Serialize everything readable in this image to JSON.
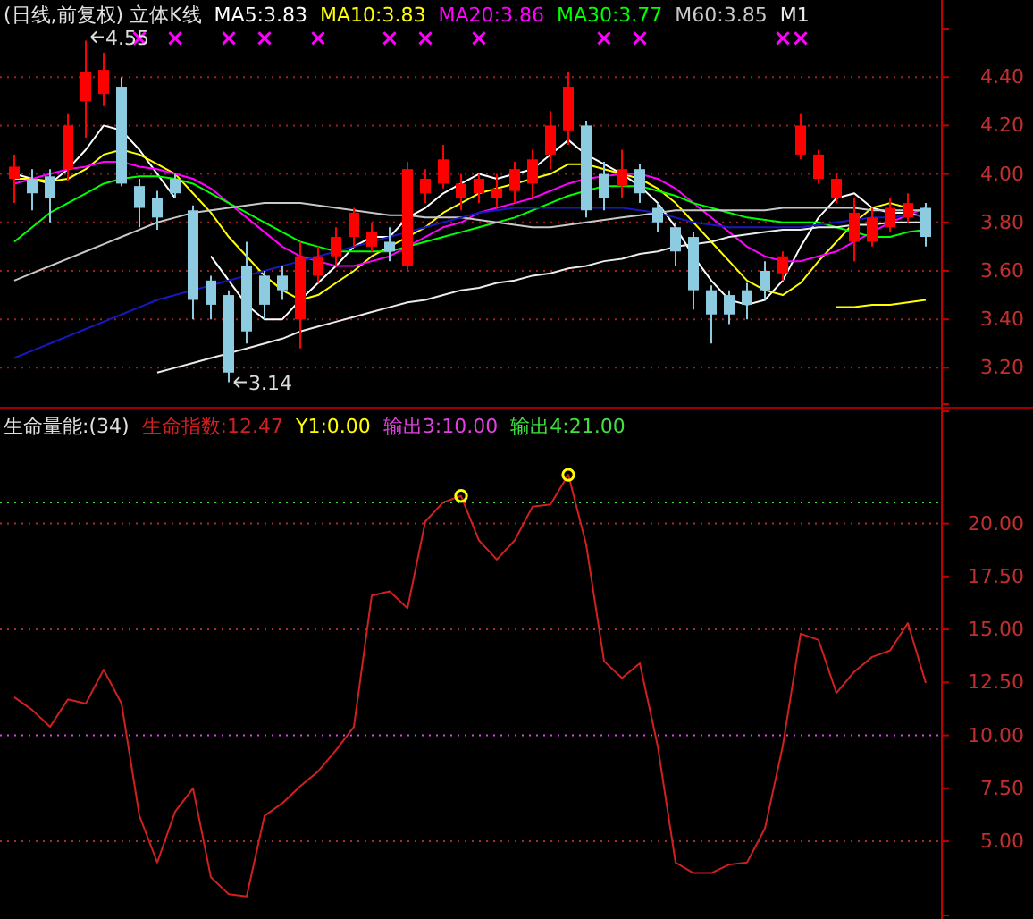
{
  "chart_data": [
    {
      "type": "candlestick",
      "title": "(日线,前复权) 立体K线",
      "legend": "top",
      "tick_labels": "y",
      "grid": "y",
      "categories": [
        null,
        null,
        null,
        null,
        null,
        null,
        null,
        null,
        null,
        null,
        null,
        null,
        null,
        null,
        null,
        null,
        null,
        null,
        null,
        null,
        null,
        null,
        null,
        null,
        null,
        null,
        null,
        null,
        null,
        null,
        null,
        null,
        null,
        null,
        null,
        null,
        null,
        null,
        null,
        null,
        null,
        null,
        null,
        null,
        null,
        null,
        null,
        null,
        null,
        null,
        null,
        null
      ],
      "ohlc": [
        [
          3.98,
          4.08,
          3.88,
          4.03
        ],
        [
          3.98,
          4.02,
          3.85,
          3.92
        ],
        [
          3.99,
          4.02,
          3.8,
          3.9
        ],
        [
          4.02,
          4.25,
          3.97,
          4.2
        ],
        [
          4.3,
          4.55,
          4.15,
          4.42
        ],
        [
          4.33,
          4.5,
          4.28,
          4.43
        ],
        [
          4.36,
          4.4,
          3.95,
          3.96
        ],
        [
          3.95,
          3.98,
          3.78,
          3.86
        ],
        [
          3.9,
          3.93,
          3.77,
          3.82
        ],
        [
          3.98,
          4.0,
          3.9,
          3.92
        ],
        [
          3.85,
          3.87,
          3.4,
          3.48
        ],
        [
          3.56,
          3.58,
          3.4,
          3.46
        ],
        [
          3.5,
          3.52,
          3.14,
          3.18
        ],
        [
          3.62,
          3.72,
          3.3,
          3.35
        ],
        [
          3.58,
          3.6,
          3.4,
          3.46
        ],
        [
          3.58,
          3.62,
          3.48,
          3.52
        ],
        [
          3.4,
          3.72,
          3.28,
          3.66
        ],
        [
          3.58,
          3.7,
          3.55,
          3.66
        ],
        [
          3.66,
          3.78,
          3.62,
          3.74
        ],
        [
          3.74,
          3.86,
          3.7,
          3.84
        ],
        [
          3.7,
          3.8,
          3.68,
          3.76
        ],
        [
          3.72,
          3.78,
          3.64,
          3.68
        ],
        [
          3.62,
          4.05,
          3.6,
          4.02
        ],
        [
          3.92,
          4.02,
          3.88,
          3.98
        ],
        [
          3.96,
          4.12,
          3.94,
          4.06
        ],
        [
          3.9,
          4.0,
          3.85,
          3.96
        ],
        [
          3.92,
          4.0,
          3.88,
          3.98
        ],
        [
          3.9,
          4.0,
          3.86,
          3.94
        ],
        [
          3.93,
          4.05,
          3.88,
          4.02
        ],
        [
          3.96,
          4.1,
          3.9,
          4.06
        ],
        [
          4.08,
          4.26,
          4.02,
          4.2
        ],
        [
          4.18,
          4.42,
          4.12,
          4.36
        ],
        [
          4.2,
          4.22,
          3.82,
          3.85
        ],
        [
          4.0,
          4.05,
          3.85,
          3.9
        ],
        [
          3.95,
          4.1,
          3.9,
          4.02
        ],
        [
          4.02,
          4.04,
          3.88,
          3.92
        ],
        [
          3.86,
          3.88,
          3.76,
          3.8
        ],
        [
          3.78,
          3.8,
          3.62,
          3.68
        ],
        [
          3.74,
          3.76,
          3.44,
          3.52
        ],
        [
          3.52,
          3.54,
          3.3,
          3.42
        ],
        [
          3.5,
          3.52,
          3.38,
          3.42
        ],
        [
          3.52,
          3.55,
          3.4,
          3.46
        ],
        [
          3.6,
          3.64,
          3.48,
          3.52
        ],
        [
          3.59,
          3.68,
          3.56,
          3.66
        ],
        [
          4.08,
          4.25,
          4.06,
          4.2
        ],
        [
          3.98,
          4.1,
          3.96,
          4.08
        ],
        [
          3.9,
          4.0,
          3.88,
          3.98
        ],
        [
          3.72,
          3.9,
          3.64,
          3.84
        ],
        [
          3.72,
          3.86,
          3.7,
          3.82
        ],
        [
          3.78,
          3.9,
          3.76,
          3.86
        ],
        [
          3.82,
          3.92,
          3.8,
          3.88
        ],
        [
          3.86,
          3.88,
          3.7,
          3.74
        ]
      ],
      "series": [
        {
          "name": "MA5:3.83",
          "type": "line",
          "color": "#ffffff",
          "values": [
            4.0,
            3.98,
            3.96,
            4.02,
            4.1,
            4.2,
            4.18,
            4.1,
            4.0,
            3.9,
            null,
            3.66,
            3.56,
            3.46,
            3.4,
            3.4,
            3.48,
            3.55,
            3.62,
            3.7,
            3.74,
            3.74,
            3.82,
            3.86,
            3.92,
            3.96,
            4.0,
            3.98,
            4.0,
            4.02,
            4.08,
            4.14,
            4.08,
            4.04,
            4.0,
            3.95,
            3.88,
            3.78,
            3.66,
            3.56,
            3.48,
            3.46,
            3.48,
            3.56,
            3.7,
            3.82,
            3.9,
            3.92,
            3.86,
            3.84,
            3.84,
            3.82
          ]
        },
        {
          "name": "MA10:3.83",
          "type": "line",
          "color": "#ffff00",
          "values": [
            3.98,
            3.98,
            3.97,
            3.98,
            4.02,
            4.08,
            4.1,
            4.08,
            4.04,
            4.0,
            3.92,
            3.84,
            3.74,
            3.66,
            3.58,
            3.52,
            3.48,
            3.5,
            3.55,
            3.6,
            3.66,
            3.7,
            3.74,
            3.78,
            3.84,
            3.88,
            3.92,
            3.94,
            3.96,
            3.98,
            4.0,
            4.04,
            4.04,
            4.02,
            4.0,
            3.98,
            3.94,
            3.88,
            3.8,
            3.72,
            3.64,
            3.56,
            3.52,
            3.5,
            3.55,
            3.64,
            3.72,
            3.8,
            3.86,
            3.88,
            3.86,
            null
          ]
        },
        {
          "name": "MA20:3.86",
          "type": "line",
          "color": "#ff00ff",
          "values": [
            3.96,
            3.98,
            4.0,
            4.02,
            4.03,
            4.05,
            4.05,
            4.03,
            4.02,
            4.0,
            3.98,
            3.94,
            3.88,
            3.82,
            3.76,
            3.7,
            3.66,
            3.64,
            3.62,
            3.62,
            3.64,
            3.66,
            3.7,
            3.74,
            3.78,
            3.8,
            3.84,
            3.86,
            3.88,
            3.9,
            3.93,
            3.96,
            3.98,
            3.99,
            4.0,
            4.0,
            3.98,
            3.94,
            3.88,
            3.82,
            3.76,
            3.7,
            3.66,
            3.64,
            3.64,
            3.66,
            3.68,
            3.72,
            3.76,
            3.8,
            3.83,
            3.86
          ]
        },
        {
          "name": "MA30:3.77",
          "type": "line",
          "color": "#00ff00",
          "values": [
            3.72,
            3.78,
            3.84,
            3.88,
            3.92,
            3.96,
            3.98,
            3.99,
            3.99,
            3.98,
            3.96,
            3.92,
            3.88,
            3.84,
            3.8,
            3.76,
            3.72,
            3.7,
            3.68,
            3.68,
            3.68,
            3.68,
            3.7,
            3.72,
            3.74,
            3.76,
            3.78,
            3.8,
            3.82,
            3.85,
            3.88,
            3.91,
            3.93,
            3.95,
            3.95,
            3.95,
            3.93,
            3.91,
            3.88,
            3.86,
            3.84,
            3.82,
            3.81,
            3.8,
            3.8,
            3.8,
            3.78,
            3.76,
            3.74,
            3.74,
            3.76,
            3.77
          ]
        },
        {
          "name": "M60:3.85",
          "type": "line",
          "color": "#c8c8c8",
          "values": [
            3.56,
            3.59,
            3.62,
            3.65,
            3.68,
            3.71,
            3.74,
            3.77,
            3.8,
            3.82,
            3.84,
            3.85,
            3.86,
            3.87,
            3.88,
            3.88,
            3.88,
            3.87,
            3.86,
            3.85,
            3.84,
            3.83,
            3.83,
            3.82,
            3.82,
            3.82,
            3.81,
            3.8,
            3.79,
            3.78,
            3.78,
            3.79,
            3.8,
            3.81,
            3.82,
            3.83,
            3.84,
            3.85,
            3.85,
            3.85,
            3.85,
            3.85,
            3.85,
            3.86,
            3.86,
            3.86,
            3.86,
            3.86,
            3.85,
            3.85,
            3.85,
            3.85
          ]
        },
        {
          "type": "line",
          "color": "#1818c0",
          "values": [
            3.24,
            3.27,
            3.3,
            3.33,
            3.36,
            3.39,
            3.42,
            3.45,
            3.48,
            3.5,
            3.52,
            3.54,
            3.56,
            3.58,
            3.6,
            3.62,
            3.64,
            3.66,
            3.68,
            3.7,
            3.72,
            3.74,
            3.76,
            3.78,
            3.8,
            3.82,
            3.84,
            3.85,
            3.86,
            3.86,
            3.86,
            3.86,
            3.86,
            3.86,
            3.86,
            3.85,
            3.84,
            3.82,
            3.8,
            3.79,
            3.78,
            3.78,
            3.78,
            3.78,
            3.78,
            3.79,
            3.8,
            3.81,
            3.82,
            3.82,
            3.83,
            3.83
          ]
        },
        {
          "name": "M1",
          "type": "line",
          "color": "#ebebeb",
          "values": [
            null,
            null,
            null,
            null,
            null,
            null,
            null,
            null,
            3.18,
            3.2,
            3.22,
            3.24,
            3.26,
            3.28,
            3.3,
            3.32,
            3.35,
            3.37,
            3.39,
            3.41,
            3.43,
            3.45,
            3.47,
            3.48,
            3.5,
            3.52,
            3.53,
            3.55,
            3.56,
            3.58,
            3.59,
            3.61,
            3.62,
            3.64,
            3.65,
            3.67,
            3.68,
            3.7,
            3.71,
            3.72,
            3.74,
            3.75,
            3.76,
            3.77,
            3.77,
            3.78,
            3.78,
            3.79,
            3.79,
            3.8,
            3.8,
            3.8
          ]
        },
        {
          "type": "line",
          "color": "#ffff00",
          "values": [
            null,
            null,
            null,
            null,
            null,
            null,
            null,
            null,
            null,
            null,
            null,
            null,
            null,
            null,
            null,
            null,
            null,
            null,
            null,
            null,
            null,
            null,
            null,
            null,
            null,
            null,
            null,
            null,
            null,
            null,
            null,
            null,
            null,
            null,
            null,
            null,
            null,
            null,
            null,
            null,
            null,
            null,
            null,
            null,
            null,
            null,
            3.45,
            3.45,
            3.46,
            3.46,
            3.47,
            3.48
          ]
        },
        {
          "type": "scatter",
          "marker": "cross",
          "color": "#ff00ff",
          "values": [
            null,
            null,
            null,
            null,
            null,
            null,
            null,
            4.56,
            null,
            4.56,
            null,
            null,
            4.56,
            null,
            4.56,
            null,
            null,
            4.56,
            null,
            null,
            null,
            4.56,
            null,
            4.56,
            null,
            null,
            4.56,
            null,
            null,
            null,
            null,
            null,
            null,
            4.56,
            null,
            4.56,
            null,
            null,
            null,
            null,
            null,
            null,
            null,
            4.56,
            4.56,
            null,
            null,
            null,
            null,
            null,
            null,
            null
          ]
        }
      ],
      "ylim": [
        3.05,
        4.6
      ],
      "yticks": [
        {
          "value": 3.2,
          "label": "3.20"
        },
        {
          "value": 3.4,
          "label": "3.40"
        },
        {
          "value": 3.6,
          "label": "3.60"
        },
        {
          "value": 3.8,
          "label": "3.80"
        },
        {
          "value": 4.0,
          "label": "4.00"
        },
        {
          "value": 4.2,
          "label": "4.20"
        },
        {
          "value": 4.4,
          "label": "4.40"
        }
      ],
      "annotations": [
        {
          "text": "4.55",
          "y": 4.55
        },
        "3.14"
      ]
    },
    {
      "type": "line",
      "title": "生命量能:(34)",
      "legend": "top",
      "tick_labels": "y",
      "categories": [
        null,
        null,
        null,
        null,
        null,
        null,
        null,
        null,
        null,
        null,
        null,
        null,
        null,
        null,
        null,
        null,
        null,
        null,
        null,
        null,
        null,
        null,
        null,
        null,
        null,
        null,
        null,
        null,
        null,
        null,
        null,
        null,
        null,
        null,
        null,
        null,
        null,
        null,
        null,
        null,
        null,
        null,
        null,
        null,
        null,
        null,
        null,
        null,
        null,
        null,
        null,
        null
      ],
      "series": [
        {
          "name": "生命指数:12.47",
          "type": "line",
          "color": "#d02020",
          "values": [
            11.8,
            11.2,
            10.4,
            11.7,
            11.5,
            13.1,
            11.5,
            6.2,
            4.0,
            6.4,
            7.5,
            3.3,
            2.5,
            2.4,
            6.2,
            6.8,
            7.6,
            8.3,
            9.3,
            10.4,
            16.6,
            16.8,
            16.0,
            20.1,
            21.0,
            21.3,
            19.2,
            18.3,
            19.2,
            20.8,
            20.9,
            22.3,
            19.0,
            13.5,
            12.7,
            13.4,
            9.5,
            4.0,
            3.5,
            3.5,
            3.9,
            4.0,
            5.6,
            9.5,
            14.8,
            14.5,
            12.0,
            13.0,
            13.7,
            14.0,
            15.3,
            12.47
          ]
        },
        {
          "name": "Y1:0.00",
          "type": "scatter",
          "marker": "circle",
          "color": "#ffff00",
          "values": [
            null,
            null,
            null,
            null,
            null,
            null,
            null,
            null,
            null,
            null,
            null,
            null,
            null,
            null,
            null,
            null,
            null,
            null,
            null,
            null,
            null,
            null,
            null,
            null,
            null,
            21.3,
            null,
            null,
            null,
            null,
            null,
            22.3,
            null,
            null,
            null,
            null,
            null,
            null,
            null,
            null,
            null,
            null,
            null,
            null,
            null,
            null,
            null,
            null,
            null,
            null,
            null,
            null
          ]
        }
      ],
      "ref_lines": [
        {
          "axis": "y",
          "value": 10,
          "label": "输出3:10.00",
          "color": "#e040e0",
          "line_style": "dotted"
        },
        {
          "axis": "y",
          "value": 21,
          "label": "输出4:21.00",
          "color": "#40e040",
          "line_style": "dotted"
        },
        {
          "axis": "y",
          "value": 20,
          "color": "#a03030",
          "line_style": "dotted"
        },
        {
          "axis": "y",
          "value": 15,
          "color": "#a03030",
          "line_style": "dotted"
        },
        {
          "axis": "y",
          "value": 5,
          "color": "#a03030",
          "line_style": "dotted"
        }
      ],
      "ylim": [
        1.5,
        25.3
      ],
      "yticks": [
        {
          "value": 5,
          "label": "5.00"
        },
        {
          "value": 7.5,
          "label": "7.50"
        },
        {
          "value": 10,
          "label": "10.00"
        },
        {
          "value": 12.5,
          "label": "12.50"
        },
        {
          "value": 15,
          "label": "15.00"
        },
        {
          "value": 17.5,
          "label": "17.50"
        },
        {
          "value": 20,
          "label": "20.00"
        }
      ]
    }
  ]
}
